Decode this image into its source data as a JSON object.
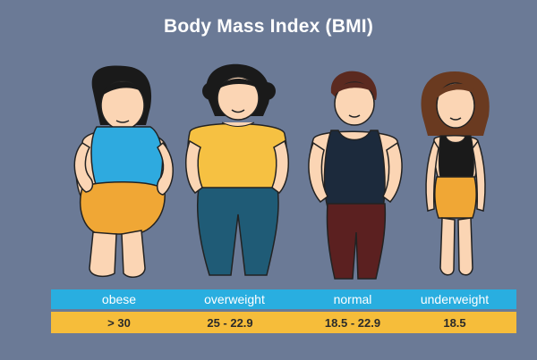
{
  "title": "Body Mass Index (BMI)",
  "categories": [
    {
      "label": "obese",
      "value": "> 30"
    },
    {
      "label": "overweight",
      "value": "25 - 22.9"
    },
    {
      "label": "normal",
      "value": "18.5 - 22.9"
    },
    {
      "label": "underweight",
      "value": "18.5"
    }
  ],
  "colors": {
    "background": "#6b7a96",
    "label_bar": "#29aee0",
    "value_bar": "#f6bd3a",
    "skin": "#fbd5b4"
  }
}
